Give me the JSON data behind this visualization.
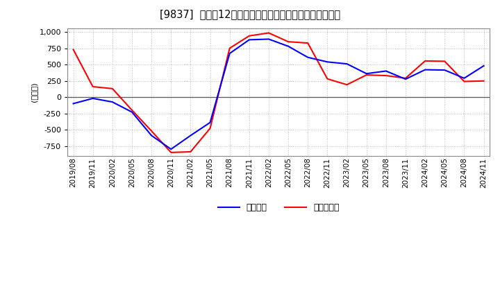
{
  "ylabel": "（百万円）",
  "background_color": "#ffffff",
  "grid_color": "#aaaaaa",
  "line_color_keijo": "#0000ff",
  "line_color_junri": "#ff0000",
  "legend_keijo": "経常利益",
  "legend_junri": "当期純利益",
  "x_labels": [
    "2019/08",
    "2019/11",
    "2020/02",
    "2020/05",
    "2020/08",
    "2020/11",
    "2021/02",
    "2021/05",
    "2021/08",
    "2021/11",
    "2022/02",
    "2022/05",
    "2022/08",
    "2022/11",
    "2023/02",
    "2023/05",
    "2023/08",
    "2023/11",
    "2024/02",
    "2024/05",
    "2024/08",
    "2024/11"
  ],
  "keijo": [
    -100,
    -20,
    -75,
    -230,
    -590,
    -800,
    -590,
    -390,
    670,
    880,
    890,
    780,
    610,
    540,
    510,
    360,
    400,
    275,
    420,
    415,
    290,
    480
  ],
  "junri": [
    730,
    160,
    130,
    -200,
    -520,
    -850,
    -840,
    -480,
    750,
    940,
    985,
    850,
    830,
    280,
    190,
    340,
    330,
    290,
    555,
    550,
    240,
    248
  ],
  "ylim": [
    -900,
    1050
  ],
  "ylim_display": [
    -900,
    1000
  ],
  "yticks": [
    -750,
    -500,
    -250,
    0,
    250,
    500,
    750,
    1000
  ]
}
